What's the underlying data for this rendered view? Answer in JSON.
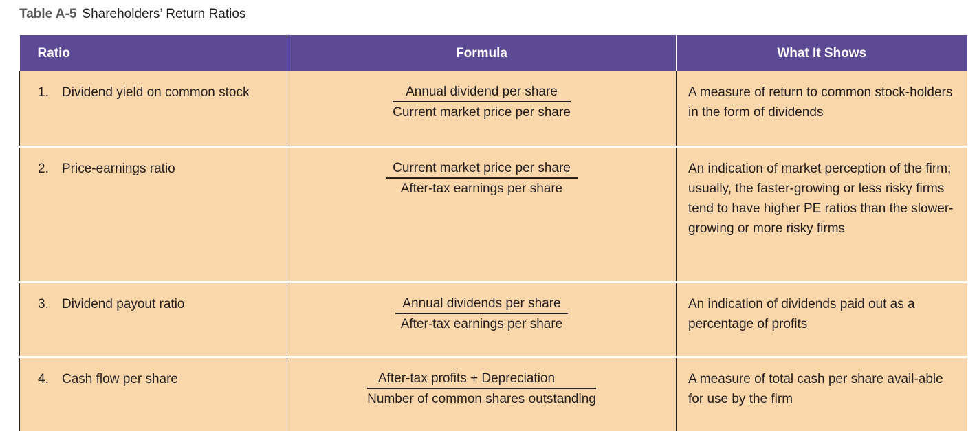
{
  "caption": {
    "number": "Table A-5",
    "title": "Shareholders’ Return Ratios"
  },
  "table": {
    "headers": {
      "ratio": "Ratio",
      "formula": "Formula",
      "shows": "What It Shows"
    },
    "rows": [
      {
        "num": "1.",
        "ratio": "Dividend yield on common stock",
        "numerator": "Annual dividend per share",
        "denominator": "Current market price per share",
        "shows": "A measure of return to common stock-holders in the form of dividends"
      },
      {
        "num": "2.",
        "ratio": "Price-earnings ratio",
        "numerator": "Current market price per share",
        "denominator": "After-tax earnings per share",
        "shows": "An indication of market perception of the firm; usually, the faster-growing or less risky firms tend to have higher PE ratios than the slower-growing or more risky firms"
      },
      {
        "num": "3.",
        "ratio": "Dividend payout ratio",
        "numerator": "Annual dividends per share",
        "denominator": "After-tax earnings per share",
        "shows": "An indication of dividends paid out as a percentage of profits"
      },
      {
        "num": "4.",
        "ratio": "Cash flow per share",
        "numerator": "After-tax profits + Depreciation",
        "denominator": "Number of common shares outstanding",
        "shows": "A measure of total cash per share avail-able for use by the firm"
      }
    ]
  },
  "colors": {
    "header_bg": "#5c4b94",
    "row_bg": "#fad6ab",
    "caption_number": "#5b5a5b"
  }
}
